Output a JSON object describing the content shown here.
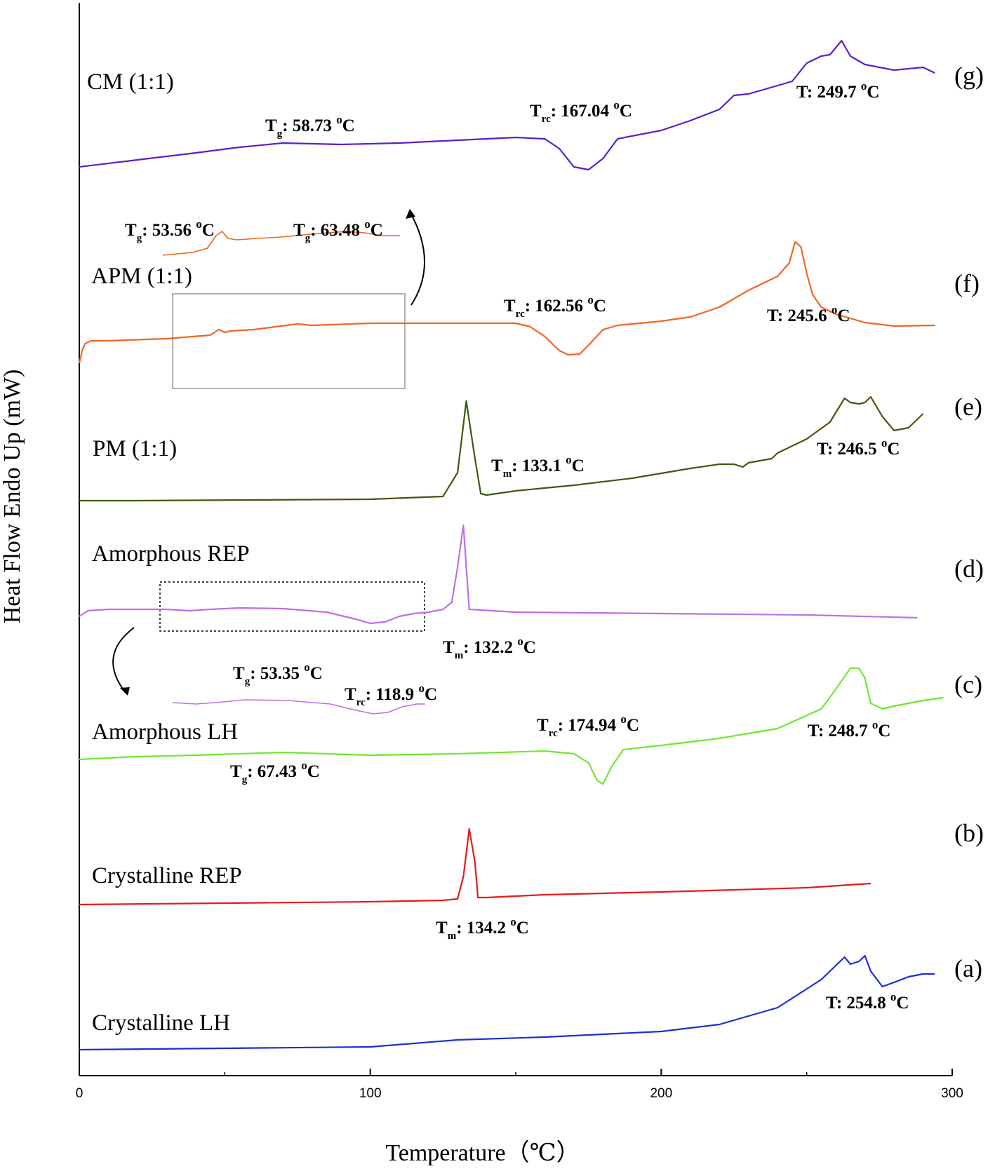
{
  "chart_data": {
    "type": "line",
    "xlabel": "Temperature（℃）",
    "ylabel": "Heat Flow Endo Up (mW)",
    "xlim": [
      0,
      300
    ],
    "x_ticks": [
      0,
      100,
      200,
      300
    ],
    "tick_labels": [
      "0",
      "100",
      "200",
      "300"
    ],
    "series": [
      {
        "id": "g",
        "name": "CM (1:1)",
        "letter": "(g)",
        "color": "#5a1fd0",
        "x": [
          0,
          20,
          40,
          55,
          70,
          90,
          110,
          130,
          150,
          160,
          165,
          170,
          175,
          180,
          185,
          200,
          210,
          220,
          225,
          230,
          235,
          245,
          250,
          255,
          258,
          262,
          265,
          270,
          280,
          290,
          294
        ],
        "y": [
          2,
          12,
          22,
          30,
          36,
          34,
          36,
          40,
          44,
          42,
          28,
          2,
          -2,
          14,
          42,
          54,
          68,
          84,
          104,
          106,
          112,
          124,
          150,
          160,
          162,
          182,
          160,
          148,
          140,
          144,
          136
        ],
        "annotations": [
          {
            "x": 60,
            "sym": "T",
            "sub": "g",
            "val": ": 58.73 ",
            "unit": "C"
          },
          {
            "x": 155,
            "sym": "T",
            "sub": "rc",
            "val": ": 167.04 ",
            "unit": "C"
          },
          {
            "x": 250,
            "sym": "T",
            "sub": "",
            "val": ": 249.7 ",
            "unit": "C"
          }
        ]
      },
      {
        "id": "f",
        "name": "APM (1:1)",
        "letter": "(f)",
        "color": "#f26522",
        "x": [
          0,
          1,
          2,
          4,
          10,
          30,
          45,
          48,
          50,
          52,
          60,
          75,
          80,
          100,
          150,
          155,
          160,
          165,
          168,
          172,
          176,
          180,
          185,
          200,
          210,
          220,
          230,
          240,
          244,
          246,
          248,
          250,
          252,
          255,
          260,
          270,
          280,
          294
        ],
        "y": [
          -8,
          10,
          20,
          24,
          24,
          27,
          32,
          40,
          36,
          38,
          40,
          48,
          46,
          49,
          49,
          44,
          30,
          10,
          4,
          5,
          22,
          40,
          46,
          52,
          58,
          72,
          96,
          116,
          135,
          165,
          158,
          120,
          90,
          72,
          62,
          50,
          45,
          46
        ],
        "annotations": [
          {
            "x": 160,
            "sym": "T",
            "sub": "rc",
            "val": ": 162.56 ",
            "unit": "C"
          },
          {
            "x": 250,
            "sym": "T",
            "sub": "",
            "val": ": 245.6 ",
            "unit": "C"
          }
        ]
      },
      {
        "id": "e",
        "name": "PM (1:1)",
        "letter": "(e)",
        "color": "#3d5a10",
        "x": [
          0,
          20,
          100,
          125,
          130,
          133,
          136,
          138,
          140,
          150,
          170,
          190,
          210,
          220,
          225,
          228,
          230,
          238,
          240,
          250,
          258,
          263,
          265,
          268,
          270,
          272,
          276,
          280,
          285,
          290
        ],
        "y": [
          0,
          0,
          2,
          6,
          40,
          142,
          60,
          10,
          8,
          14,
          22,
          32,
          46,
          52,
          52,
          48,
          54,
          60,
          68,
          88,
          112,
          146,
          140,
          138,
          140,
          148,
          120,
          100,
          104,
          124
        ],
        "annotations": [
          {
            "x": 140,
            "sym": "T",
            "sub": "m",
            "val": ": 133.1 ",
            "unit": "C"
          },
          {
            "x": 250,
            "sym": "T",
            "sub": "",
            "val": ": 246.5 ",
            "unit": "C"
          }
        ]
      },
      {
        "id": "d",
        "name": "Amorphous REP",
        "letter": "(d)",
        "color": "#c06ee8",
        "x": [
          0,
          3,
          10,
          30,
          38,
          45,
          55,
          70,
          85,
          95,
          100,
          105,
          110,
          115,
          120,
          125,
          128,
          130,
          132,
          134,
          150,
          200,
          250,
          288
        ],
        "y": [
          0,
          8,
          10,
          10,
          8,
          10,
          12,
          11,
          6,
          -4,
          -10,
          -8,
          0,
          4,
          6,
          10,
          20,
          70,
          130,
          10,
          6,
          4,
          2,
          -2
        ],
        "annotations": [
          {
            "x": 135,
            "sym": "T",
            "sub": "m",
            "val": ": 132.2 ",
            "unit": "C"
          }
        ]
      },
      {
        "id": "c",
        "name": "Amorphous LH",
        "letter": "(c)",
        "color": "#6ee830",
        "x": [
          0,
          20,
          40,
          70,
          100,
          130,
          160,
          170,
          175,
          178,
          180,
          183,
          187,
          200,
          220,
          240,
          255,
          260,
          263,
          265,
          268,
          270,
          272,
          276,
          280,
          290,
          297
        ],
        "y": [
          0,
          4,
          6,
          10,
          6,
          8,
          12,
          8,
          -5,
          -30,
          -35,
          -10,
          14,
          20,
          30,
          44,
          72,
          100,
          118,
          130,
          130,
          116,
          80,
          72,
          76,
          84,
          88
        ],
        "annotations": [
          {
            "x": 60,
            "sym": "T",
            "sub": "g",
            "val": ": 67.43 ",
            "unit": "C"
          },
          {
            "x": 175,
            "sym": "T",
            "sub": "rc",
            "val": ": 174.94 ",
            "unit": "C"
          },
          {
            "x": 250,
            "sym": "T",
            "sub": "",
            "val": ": 248.7 ",
            "unit": "C"
          }
        ]
      },
      {
        "id": "b",
        "name": "Crystalline REP",
        "letter": "(b)",
        "color": "#e51b1b",
        "x": [
          0,
          50,
          100,
          125,
          130,
          132,
          134,
          136,
          137,
          140,
          160,
          200,
          250,
          272
        ],
        "y": [
          0,
          2,
          4,
          6,
          8,
          40,
          108,
          60,
          10,
          10,
          14,
          18,
          24,
          30
        ],
        "annotations": [
          {
            "x": 125,
            "sym": "T",
            "sub": "m",
            "val": ": 134.2 ",
            "unit": "C"
          }
        ]
      },
      {
        "id": "a",
        "name": "Crystalline LH",
        "letter": "(a)",
        "color": "#1b2fd4",
        "x": [
          0,
          50,
          100,
          130,
          160,
          200,
          220,
          240,
          255,
          260,
          263,
          265,
          268,
          270,
          272,
          276,
          280,
          285,
          290,
          294
        ],
        "y": [
          0,
          2,
          4,
          14,
          18,
          26,
          36,
          60,
          100,
          120,
          132,
          122,
          126,
          134,
          112,
          90,
          96,
          104,
          108,
          108
        ],
        "annotations": [
          {
            "x": 250,
            "sym": "T",
            "sub": "",
            "val": ": 254.8 ",
            "unit": "C"
          }
        ]
      }
    ],
    "insets": [
      {
        "id": "f_inset",
        "color": "#f26522",
        "x": [
          30,
          40,
          45,
          48,
          50,
          52,
          55,
          62,
          70,
          80,
          92,
          98,
          104,
          110
        ],
        "y": [
          0,
          4,
          10,
          28,
          34,
          24,
          22,
          24,
          26,
          30,
          34,
          32,
          28,
          28
        ],
        "annotations": [
          {
            "sym": "T",
            "sub": "g",
            "val": ": 53.56 ",
            "unit": "C"
          },
          {
            "sym": "T",
            "sub": "g",
            "val": ": 63.48 ",
            "unit": "C"
          }
        ]
      },
      {
        "id": "d_inset",
        "color": "#c06ee8",
        "x": [
          30,
          38,
          45,
          55,
          70,
          85,
          95,
          100,
          105,
          110,
          115,
          118
        ],
        "y": [
          6,
          4,
          6,
          10,
          9,
          4,
          -6,
          -10,
          -8,
          0,
          4,
          4
        ],
        "annotations": [
          {
            "sym": "T",
            "sub": "g",
            "val": ": 53.35 ",
            "unit": "C"
          },
          {
            "sym": "T",
            "sub": "rc",
            "val": ": 118.9 ",
            "unit": "C"
          }
        ]
      }
    ],
    "degree_mark": "o"
  }
}
